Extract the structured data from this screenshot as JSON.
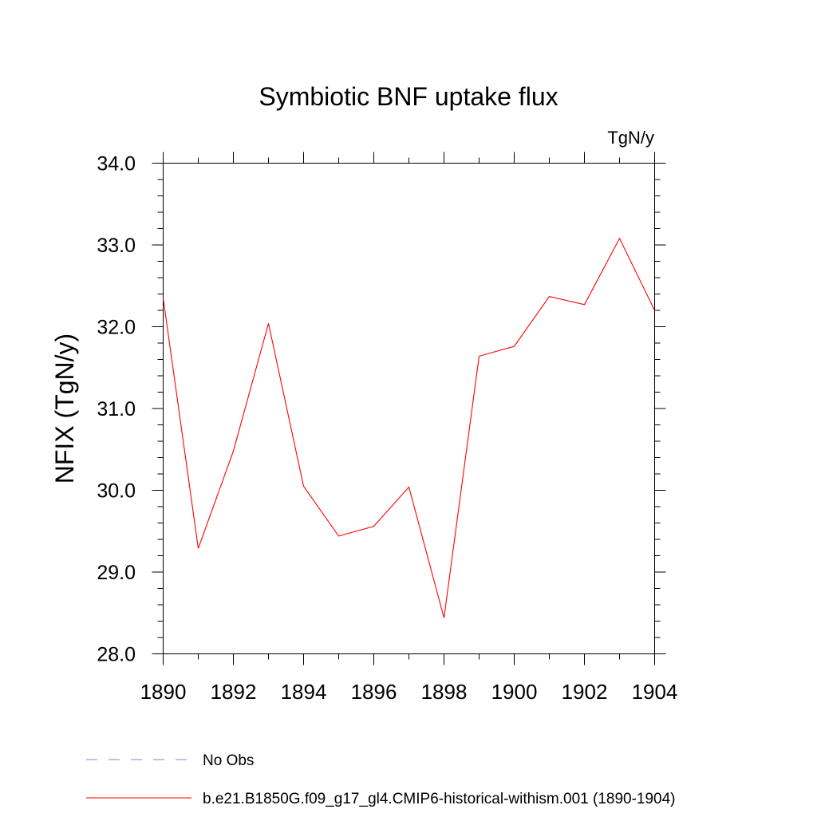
{
  "chart_data": {
    "type": "line",
    "title": "Symbiotic BNF uptake flux",
    "units_label": "TgN/y",
    "ylabel": "NFIX  (TgN/y)",
    "xlabel": "",
    "xlim": [
      1890,
      1904
    ],
    "ylim": [
      28.0,
      34.0
    ],
    "x_ticks": [
      "1890",
      "1892",
      "1894",
      "1896",
      "1898",
      "1900",
      "1902",
      "1904"
    ],
    "x_tick_values": [
      1890,
      1892,
      1894,
      1896,
      1898,
      1900,
      1902,
      1904
    ],
    "y_ticks": [
      "28.0",
      "29.0",
      "30.0",
      "31.0",
      "32.0",
      "33.0",
      "34.0"
    ],
    "y_tick_values": [
      28,
      29,
      30,
      31,
      32,
      33,
      34
    ],
    "grid": false,
    "series": [
      {
        "name": "b.e21.B1850G.f09_g17_gl4.CMIP6-historical-withism.001 (1890-1904)",
        "color": "#ff0000",
        "style": "solid",
        "x": [
          1890,
          1891,
          1892,
          1893,
          1894,
          1895,
          1896,
          1897,
          1898,
          1899,
          1900,
          1901,
          1902,
          1903,
          1904
        ],
        "values": [
          32.35,
          29.29,
          30.48,
          32.04,
          30.05,
          29.44,
          29.56,
          30.04,
          28.44,
          31.64,
          31.76,
          32.37,
          32.27,
          33.08,
          32.2
        ]
      }
    ],
    "legend": {
      "placement": "bottom-left",
      "entries": [
        {
          "label": "No Obs",
          "color": "#8a82c8",
          "style": "dashed"
        },
        {
          "label": "b.e21.B1850G.f09_g17_gl4.CMIP6-historical-withism.001 (1890-1904)",
          "color": "#ff0000",
          "style": "solid"
        }
      ]
    }
  }
}
